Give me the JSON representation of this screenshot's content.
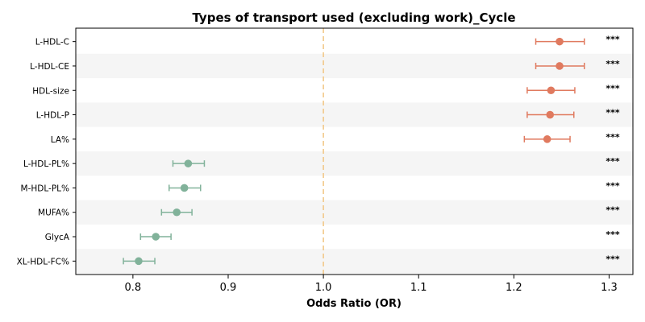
{
  "chart_data": {
    "type": "forest",
    "title": "Types of transport used (excluding work)_Cycle",
    "xlabel": "Odds Ratio (OR)",
    "ylabel": "",
    "xlim": [
      0.74,
      1.325
    ],
    "xticks": [
      "0.8",
      "0.9",
      "1.0",
      "1.1",
      "1.2",
      "1.3"
    ],
    "xtick_values": [
      0.8,
      0.9,
      1.0,
      1.1,
      1.2,
      1.3
    ],
    "reference_line": 1.0,
    "grid": false,
    "row_banding": true,
    "colors": {
      "positive": "#e07a5f",
      "negative": "#81b29a",
      "reference_line": "#f2c98a",
      "band": "#f5f5f5"
    },
    "rows": [
      {
        "label": "L-HDL-C",
        "or": 1.248,
        "lower": 1.223,
        "upper": 1.274,
        "sig": "***"
      },
      {
        "label": "L-HDL-CE",
        "or": 1.248,
        "lower": 1.223,
        "upper": 1.274,
        "sig": "***"
      },
      {
        "label": "HDL-size",
        "or": 1.239,
        "lower": 1.214,
        "upper": 1.264,
        "sig": "***"
      },
      {
        "label": "L-HDL-P",
        "or": 1.238,
        "lower": 1.214,
        "upper": 1.263,
        "sig": "***"
      },
      {
        "label": "LA%",
        "or": 1.235,
        "lower": 1.211,
        "upper": 1.259,
        "sig": "***"
      },
      {
        "label": "L-HDL-PL%",
        "or": 0.858,
        "lower": 0.842,
        "upper": 0.875,
        "sig": "***"
      },
      {
        "label": "M-HDL-PL%",
        "or": 0.854,
        "lower": 0.838,
        "upper": 0.871,
        "sig": "***"
      },
      {
        "label": "MUFA%",
        "or": 0.846,
        "lower": 0.83,
        "upper": 0.862,
        "sig": "***"
      },
      {
        "label": "GlycA",
        "or": 0.824,
        "lower": 0.808,
        "upper": 0.84,
        "sig": "***"
      },
      {
        "label": "XL-HDL-FC%",
        "or": 0.806,
        "lower": 0.79,
        "upper": 0.823,
        "sig": "***"
      }
    ]
  }
}
